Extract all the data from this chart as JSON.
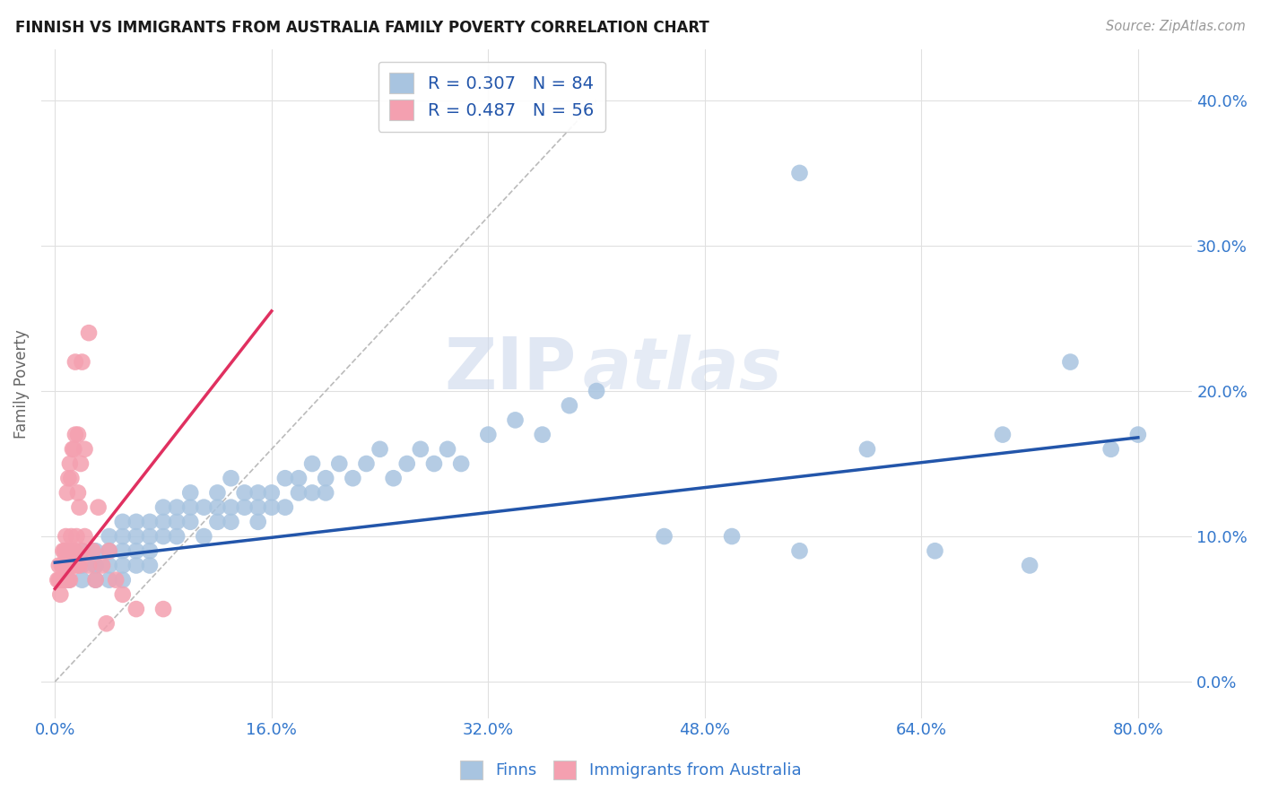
{
  "title": "FINNISH VS IMMIGRANTS FROM AUSTRALIA FAMILY POVERTY CORRELATION CHART",
  "source": "Source: ZipAtlas.com",
  "ylabel": "Family Poverty",
  "ytick_values": [
    0.0,
    0.1,
    0.2,
    0.3,
    0.4
  ],
  "xtick_values": [
    0.0,
    0.16,
    0.32,
    0.48,
    0.64,
    0.8
  ],
  "xlim": [
    -0.01,
    0.84
  ],
  "ylim": [
    -0.025,
    0.435
  ],
  "legend_blue_r": "R = 0.307",
  "legend_blue_n": "N = 84",
  "legend_pink_r": "R = 0.487",
  "legend_pink_n": "N = 56",
  "blue_color": "#a8c4e0",
  "pink_color": "#f4a0b0",
  "blue_line_color": "#2255aa",
  "pink_line_color": "#e03060",
  "diag_line_color": "#bbbbbb",
  "title_color": "#1a1a1a",
  "axis_label_color": "#3377cc",
  "blue_dots_x": [
    0.01,
    0.01,
    0.02,
    0.02,
    0.02,
    0.03,
    0.03,
    0.03,
    0.03,
    0.04,
    0.04,
    0.04,
    0.04,
    0.05,
    0.05,
    0.05,
    0.05,
    0.05,
    0.06,
    0.06,
    0.06,
    0.06,
    0.07,
    0.07,
    0.07,
    0.07,
    0.08,
    0.08,
    0.08,
    0.09,
    0.09,
    0.09,
    0.1,
    0.1,
    0.1,
    0.11,
    0.11,
    0.12,
    0.12,
    0.12,
    0.13,
    0.13,
    0.13,
    0.14,
    0.14,
    0.15,
    0.15,
    0.15,
    0.16,
    0.16,
    0.17,
    0.17,
    0.18,
    0.18,
    0.19,
    0.19,
    0.2,
    0.2,
    0.21,
    0.22,
    0.23,
    0.24,
    0.25,
    0.26,
    0.27,
    0.28,
    0.29,
    0.3,
    0.32,
    0.34,
    0.36,
    0.38,
    0.4,
    0.45,
    0.5,
    0.55,
    0.6,
    0.65,
    0.7,
    0.72,
    0.75,
    0.78,
    0.8,
    0.55
  ],
  "blue_dots_y": [
    0.09,
    0.07,
    0.08,
    0.09,
    0.07,
    0.08,
    0.09,
    0.08,
    0.07,
    0.09,
    0.1,
    0.08,
    0.07,
    0.09,
    0.1,
    0.08,
    0.11,
    0.07,
    0.09,
    0.1,
    0.08,
    0.11,
    0.09,
    0.1,
    0.11,
    0.08,
    0.1,
    0.11,
    0.12,
    0.1,
    0.11,
    0.12,
    0.11,
    0.12,
    0.13,
    0.1,
    0.12,
    0.11,
    0.12,
    0.13,
    0.11,
    0.12,
    0.14,
    0.12,
    0.13,
    0.11,
    0.12,
    0.13,
    0.12,
    0.13,
    0.12,
    0.14,
    0.13,
    0.14,
    0.13,
    0.15,
    0.13,
    0.14,
    0.15,
    0.14,
    0.15,
    0.16,
    0.14,
    0.15,
    0.16,
    0.15,
    0.16,
    0.15,
    0.17,
    0.18,
    0.17,
    0.19,
    0.2,
    0.1,
    0.1,
    0.09,
    0.16,
    0.09,
    0.17,
    0.08,
    0.22,
    0.16,
    0.17,
    0.35
  ],
  "pink_dots_x": [
    0.002,
    0.003,
    0.003,
    0.004,
    0.004,
    0.005,
    0.005,
    0.006,
    0.006,
    0.006,
    0.007,
    0.007,
    0.007,
    0.008,
    0.008,
    0.008,
    0.009,
    0.009,
    0.01,
    0.01,
    0.01,
    0.01,
    0.011,
    0.011,
    0.012,
    0.012,
    0.013,
    0.013,
    0.014,
    0.014,
    0.015,
    0.015,
    0.015,
    0.016,
    0.016,
    0.017,
    0.017,
    0.018,
    0.018,
    0.019,
    0.02,
    0.02,
    0.022,
    0.022,
    0.025,
    0.025,
    0.028,
    0.03,
    0.032,
    0.035,
    0.038,
    0.04,
    0.045,
    0.05,
    0.06,
    0.08
  ],
  "pink_dots_y": [
    0.07,
    0.07,
    0.08,
    0.06,
    0.07,
    0.07,
    0.08,
    0.07,
    0.08,
    0.09,
    0.08,
    0.07,
    0.09,
    0.08,
    0.09,
    0.1,
    0.08,
    0.13,
    0.07,
    0.08,
    0.09,
    0.14,
    0.15,
    0.07,
    0.1,
    0.14,
    0.09,
    0.16,
    0.08,
    0.16,
    0.17,
    0.09,
    0.22,
    0.08,
    0.1,
    0.13,
    0.17,
    0.08,
    0.12,
    0.15,
    0.09,
    0.22,
    0.1,
    0.16,
    0.08,
    0.24,
    0.09,
    0.07,
    0.12,
    0.08,
    0.04,
    0.09,
    0.07,
    0.06,
    0.05,
    0.05
  ],
  "blue_line_x": [
    0.0,
    0.8
  ],
  "blue_line_y": [
    0.082,
    0.168
  ],
  "pink_line_x": [
    0.0,
    0.16
  ],
  "pink_line_y": [
    0.064,
    0.255
  ],
  "diag_line_x": [
    0.0,
    0.4
  ],
  "diag_line_y": [
    0.0,
    0.4
  ]
}
